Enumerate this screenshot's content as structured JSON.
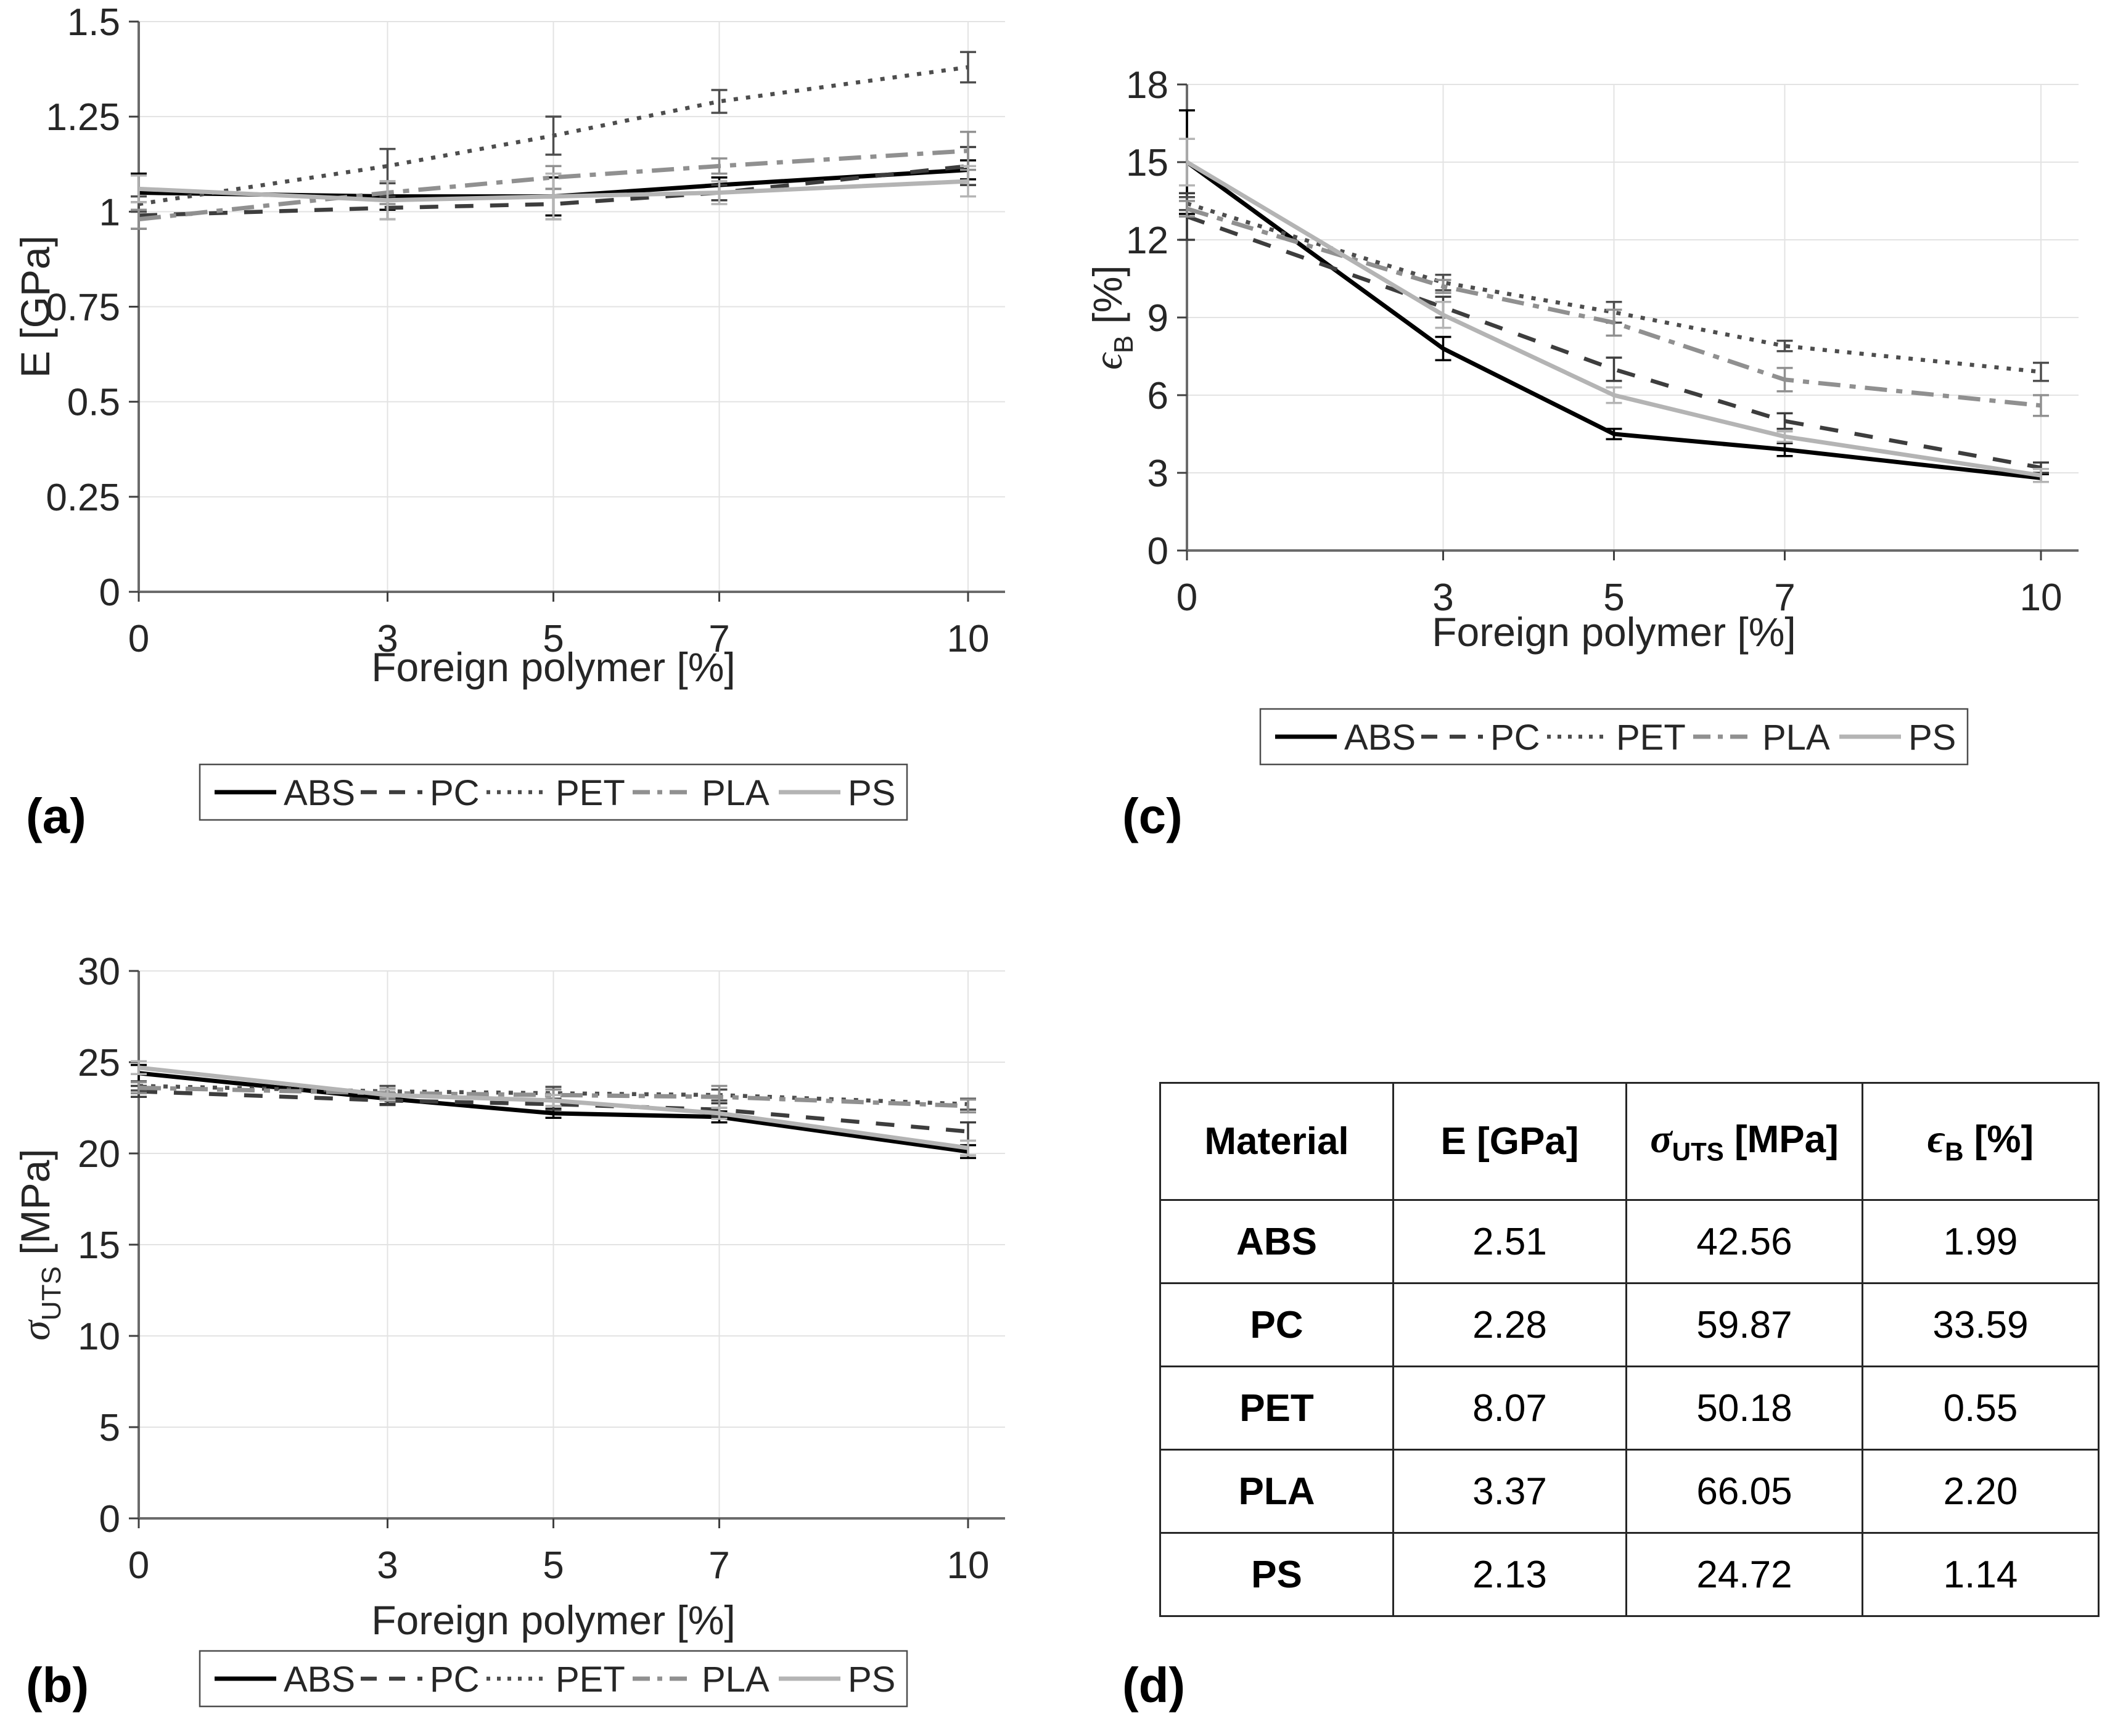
{
  "figure": {
    "background": "#ffffff",
    "panel_labels": {
      "a": "(a)",
      "b": "(b)",
      "c": "(c)",
      "d": "(d)"
    }
  },
  "styles": {
    "grid_color": "#e3e3e3",
    "axis_color": "#6b6b6b",
    "tick_color": "#404040",
    "text_color": "#262626",
    "series": [
      {
        "name": "ABS",
        "color": "#000000",
        "dash": "solid"
      },
      {
        "name": "PC",
        "color": "#3d3d3d",
        "dash": "dashed"
      },
      {
        "name": "PET",
        "color": "#4d4d4d",
        "dash": "dotted"
      },
      {
        "name": "PLA",
        "color": "#909090",
        "dash": "dashdot"
      },
      {
        "name": "PS",
        "color": "#b4b4b4",
        "dash": "solid"
      }
    ]
  },
  "legend": {
    "entries": [
      "ABS",
      "PC",
      "PET",
      "PLA",
      "PS"
    ],
    "position": "below"
  },
  "chart_data": [
    {
      "id": "a",
      "type": "line",
      "panel_label": "(a)",
      "xlabel": "Foreign polymer [%]",
      "ylabel": "E [GPa]",
      "ylabel_parts": {
        "sym": "E",
        "italic": false,
        "sub": "",
        "post": " [GPa]"
      },
      "x": [
        0,
        3,
        5,
        7,
        10
      ],
      "xtick_labels": [
        "0",
        "3",
        "5",
        "7",
        "10"
      ],
      "ylim": [
        0,
        1.5
      ],
      "yticks": [
        0,
        0.25,
        0.5,
        0.75,
        1,
        1.25,
        1.5
      ],
      "ytick_labels": [
        "0",
        "0.25",
        "0.5",
        "0.75",
        "1",
        "1.25",
        "1.5"
      ],
      "grid": true,
      "series": [
        {
          "name": "ABS",
          "values": [
            1.05,
            1.04,
            1.04,
            1.07,
            1.11
          ],
          "err": [
            0.05,
            0.035,
            0.05,
            0.02,
            0.025
          ]
        },
        {
          "name": "PC",
          "values": [
            0.99,
            1.01,
            1.02,
            1.05,
            1.12
          ],
          "err": [
            0.035,
            0.03,
            0.04,
            0.02,
            0.05
          ]
        },
        {
          "name": "PET",
          "values": [
            1.02,
            1.12,
            1.2,
            1.29,
            1.38
          ],
          "err": [
            0.02,
            0.045,
            0.05,
            0.03,
            0.04
          ]
        },
        {
          "name": "PLA",
          "values": [
            0.98,
            1.05,
            1.09,
            1.12,
            1.16
          ],
          "err": [
            0.025,
            0.03,
            0.03,
            0.02,
            0.05
          ]
        },
        {
          "name": "PS",
          "values": [
            1.06,
            1.03,
            1.04,
            1.05,
            1.08
          ],
          "err": [
            0.035,
            0.05,
            0.06,
            0.03,
            0.04
          ]
        }
      ]
    },
    {
      "id": "c",
      "type": "line",
      "panel_label": "(c)",
      "xlabel": "Foreign polymer [%]",
      "ylabel": "ϵB [%]",
      "ylabel_parts": {
        "sym": "ϵ",
        "italic": true,
        "sub": "B",
        "post": " [%]"
      },
      "x": [
        0,
        3,
        5,
        7,
        10
      ],
      "xtick_labels": [
        "0",
        "3",
        "5",
        "7",
        "10"
      ],
      "ylim": [
        0,
        18
      ],
      "yticks": [
        0,
        3,
        6,
        9,
        12,
        15,
        18
      ],
      "ytick_labels": [
        "0",
        "3",
        "6",
        "9",
        "12",
        "15",
        "18"
      ],
      "grid": true,
      "series": [
        {
          "name": "ABS",
          "values": [
            15.0,
            7.8,
            4.5,
            3.9,
            2.8
          ],
          "err": [
            2.0,
            0.45,
            0.2,
            0.25,
            0.15
          ]
        },
        {
          "name": "PC",
          "values": [
            12.9,
            9.4,
            7.0,
            5.0,
            3.2
          ],
          "err": [
            0.9,
            0.4,
            0.45,
            0.3,
            0.2
          ]
        },
        {
          "name": "PET",
          "values": [
            13.4,
            10.35,
            9.2,
            7.9,
            6.9
          ],
          "err": [
            0.25,
            0.3,
            0.4,
            0.2,
            0.35
          ]
        },
        {
          "name": "PLA",
          "values": [
            13.2,
            10.2,
            8.8,
            6.6,
            5.6
          ],
          "err": [
            0.3,
            0.25,
            0.5,
            0.45,
            0.4
          ]
        },
        {
          "name": "PS",
          "values": [
            15.0,
            9.1,
            6.0,
            4.4,
            2.9
          ],
          "err": [
            0.9,
            0.5,
            0.3,
            0.2,
            0.25
          ]
        }
      ]
    },
    {
      "id": "b",
      "type": "line",
      "panel_label": "(b)",
      "xlabel": "Foreign polymer [%]",
      "ylabel": "σUTS [MPa]",
      "ylabel_parts": {
        "sym": "σ",
        "italic": true,
        "sub": "UTS",
        "post": " [MPa]"
      },
      "x": [
        0,
        3,
        5,
        7,
        10
      ],
      "xtick_labels": [
        "0",
        "3",
        "5",
        "7",
        "10"
      ],
      "ylim": [
        0,
        30
      ],
      "yticks": [
        0,
        5,
        10,
        15,
        20,
        25,
        30
      ],
      "ytick_labels": [
        "0",
        "5",
        "10",
        "15",
        "20",
        "25",
        "30"
      ],
      "grid": true,
      "series": [
        {
          "name": "ABS",
          "values": [
            24.4,
            23.0,
            22.2,
            22.0,
            20.1
          ],
          "err": [
            0.45,
            0.3,
            0.25,
            0.3,
            0.35
          ]
        },
        {
          "name": "PC",
          "values": [
            23.4,
            22.9,
            22.7,
            22.4,
            21.2
          ],
          "err": [
            0.3,
            0.25,
            0.3,
            0.35,
            0.5
          ]
        },
        {
          "name": "PET",
          "values": [
            23.7,
            23.4,
            23.3,
            23.2,
            22.7
          ],
          "err": [
            0.25,
            0.3,
            0.35,
            0.3,
            0.3
          ]
        },
        {
          "name": "PLA",
          "values": [
            23.6,
            23.3,
            23.2,
            23.1,
            22.6
          ],
          "err": [
            0.3,
            0.25,
            0.3,
            0.6,
            0.35
          ]
        },
        {
          "name": "PS",
          "values": [
            24.7,
            23.2,
            22.9,
            22.2,
            20.3
          ],
          "err": [
            0.35,
            0.3,
            0.3,
            0.3,
            0.4
          ]
        }
      ]
    },
    {
      "id": "d",
      "type": "table",
      "panel_label": "(d)",
      "columns": [
        "Material",
        "E [GPa]",
        "σUTS [MPa]",
        "ϵB [%]"
      ],
      "column_parts": [
        {
          "sym": "Material",
          "italic": false,
          "sub": "",
          "post": ""
        },
        {
          "sym": "E",
          "italic": false,
          "sub": "",
          "post": " [GPa]"
        },
        {
          "sym": "σ",
          "italic": true,
          "sub": "UTS",
          "post": " [MPa]"
        },
        {
          "sym": "ϵ",
          "italic": true,
          "sub": "B",
          "post": " [%]"
        }
      ],
      "rows": [
        [
          "ABS",
          "2.51",
          "42.56",
          "1.99"
        ],
        [
          "PC",
          "2.28",
          "59.87",
          "33.59"
        ],
        [
          "PET",
          "8.07",
          "50.18",
          "0.55"
        ],
        [
          "PLA",
          "3.37",
          "66.05",
          "2.20"
        ],
        [
          "PS",
          "2.13",
          "24.72",
          "1.14"
        ]
      ]
    }
  ]
}
